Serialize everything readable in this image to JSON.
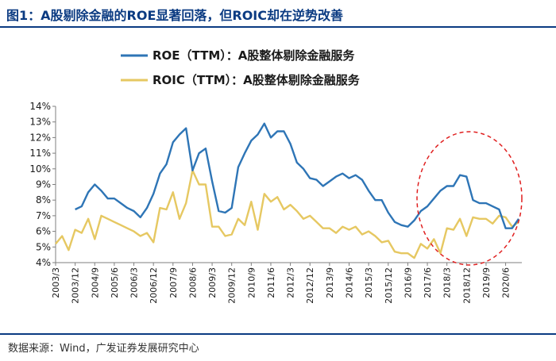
{
  "figure_title": "图1：A股剔除金融的ROE显著回落，但ROIC却在逆势改善",
  "source_note": "数据来源：Wind，广发证券发展研究中心",
  "colors": {
    "roe": "#2e75b6",
    "roic": "#e6c862",
    "highlight": "#e02020",
    "heading": "#0b3b82"
  },
  "chart_data": {
    "type": "line",
    "title": "",
    "xlabel": "",
    "ylabel": "",
    "ylim": [
      4,
      14
    ],
    "y_ticks": [
      "4%",
      "5%",
      "6%",
      "7%",
      "8%",
      "9%",
      "10%",
      "11%",
      "12%",
      "13%",
      "14%"
    ],
    "x_tick_labels": [
      "2003/3",
      "2003/12",
      "2004/9",
      "2005/6",
      "2006/3",
      "2006/12",
      "2007/9",
      "2008/6",
      "2009/3",
      "2009/12",
      "2010/9",
      "2011/6",
      "2012/3",
      "2012/12",
      "2013/9",
      "2014/6",
      "2015/3",
      "2015/12",
      "2016/9",
      "2017/6",
      "2018/3",
      "2018/12",
      "2019/9",
      "2020/6"
    ],
    "legend_position": "top",
    "grid": false,
    "series": [
      {
        "name": "ROE（TTM）：A股整体剔除金融服务",
        "color": "#2e75b6",
        "start_index": 3,
        "values": [
          7.4,
          7.6,
          8.5,
          9.0,
          8.6,
          8.1,
          8.1,
          7.8,
          7.5,
          7.3,
          6.9,
          7.5,
          8.4,
          9.7,
          10.3,
          11.7,
          12.2,
          12.6,
          9.9,
          11.0,
          11.3,
          9.2,
          7.3,
          7.2,
          7.5,
          10.1,
          11.0,
          11.8,
          12.2,
          12.9,
          12.0,
          12.4,
          12.4,
          11.6,
          10.4,
          10.0,
          9.4,
          9.3,
          8.9,
          9.2,
          9.5,
          9.7,
          9.4,
          9.6,
          9.3,
          8.6,
          8.0,
          8.0,
          7.2,
          6.6,
          6.4,
          6.3,
          6.7,
          7.3,
          7.6,
          8.1,
          8.6,
          8.9,
          8.9,
          9.6,
          9.5,
          8.0,
          7.8,
          7.8,
          7.6,
          7.4,
          6.2,
          6.2,
          6.8
        ]
      },
      {
        "name": "ROIC（TTM）：A股整体剔除金融服务",
        "color": "#e6c862",
        "start_index": 0,
        "values": [
          5.2,
          5.7,
          4.8,
          6.1,
          5.9,
          6.8,
          5.5,
          7.0,
          6.8,
          6.6,
          6.4,
          6.2,
          6.0,
          5.7,
          5.9,
          5.3,
          7.5,
          7.4,
          8.5,
          6.8,
          7.8,
          9.9,
          9.0,
          9.0,
          6.3,
          6.3,
          5.7,
          5.8,
          6.8,
          6.4,
          7.9,
          6.1,
          8.4,
          7.9,
          8.2,
          7.4,
          7.7,
          7.3,
          6.8,
          7.0,
          6.6,
          6.2,
          6.2,
          5.9,
          6.3,
          6.1,
          6.3,
          5.8,
          6.0,
          5.7,
          5.3,
          5.4,
          4.7,
          4.6,
          4.6,
          4.3,
          5.2,
          4.9,
          5.5,
          4.6,
          6.2,
          6.1,
          6.8,
          5.7,
          6.9,
          6.8,
          6.8,
          6.5,
          7.0,
          6.9,
          6.3,
          6.6
        ]
      }
    ]
  }
}
